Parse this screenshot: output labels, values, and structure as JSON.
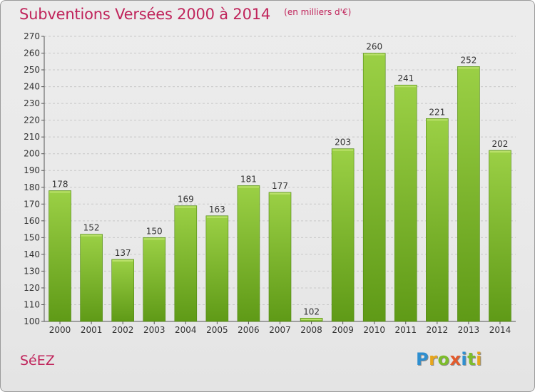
{
  "header": {
    "title": "Subventions Versées 2000 à 2014",
    "subtitle": "(en milliers d'€)"
  },
  "footer": {
    "place": "SéEZ",
    "logo_letters": [
      {
        "ch": "P",
        "color": "#2e8fd0"
      },
      {
        "ch": "r",
        "color": "#e7a51c"
      },
      {
        "ch": "o",
        "color": "#7dbd2b"
      },
      {
        "ch": "x",
        "color": "#e35a2b"
      },
      {
        "ch": "i",
        "color": "#2e8fd0"
      },
      {
        "ch": "t",
        "color": "#7dbd2b"
      },
      {
        "ch": "i",
        "color": "#e7a51c"
      }
    ]
  },
  "colors": {
    "bar_top": "#9bd045",
    "bar_bottom": "#5f9a17",
    "bar_edge": "#4f8712",
    "title": "#c0245b",
    "grid": "#c8c8c8"
  },
  "chart_data": {
    "type": "bar",
    "categories": [
      "2000",
      "2001",
      "2002",
      "2003",
      "2004",
      "2005",
      "2006",
      "2007",
      "2008",
      "2009",
      "2010",
      "2011",
      "2012",
      "2013",
      "2014"
    ],
    "values": [
      178,
      152,
      137,
      150,
      169,
      163,
      181,
      177,
      102,
      203,
      260,
      241,
      221,
      252,
      202
    ],
    "ylim": [
      100,
      270
    ],
    "yticks": [
      100,
      110,
      120,
      130,
      140,
      150,
      160,
      170,
      180,
      190,
      200,
      210,
      220,
      230,
      240,
      250,
      260,
      270
    ],
    "grid": true,
    "data_labels": true
  }
}
